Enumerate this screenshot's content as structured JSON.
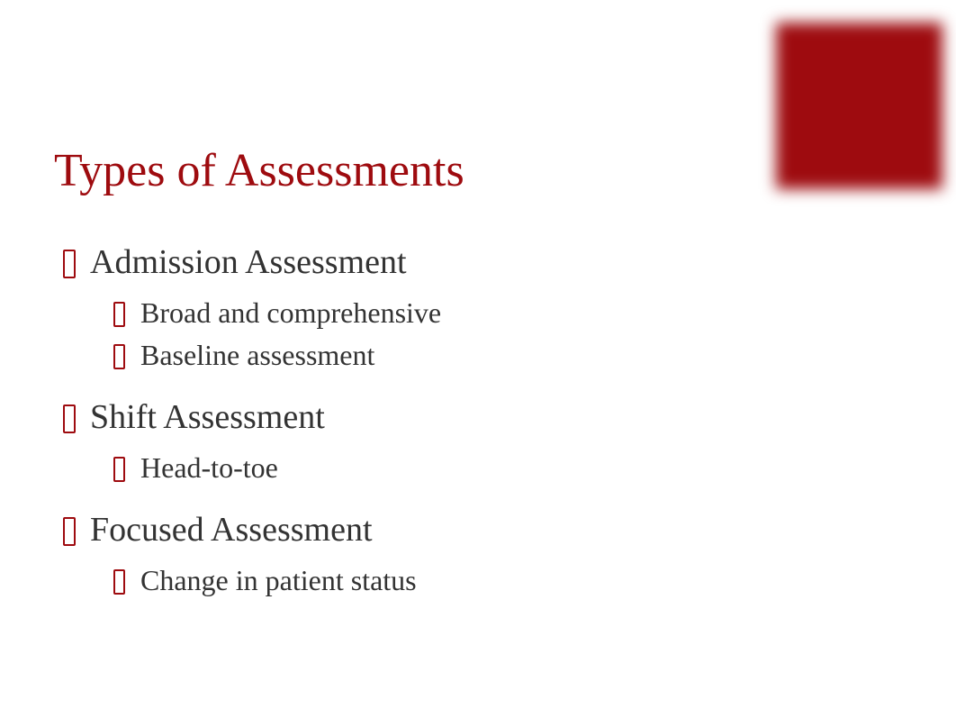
{
  "title": "Types of Assessments",
  "colors": {
    "accent": "#9e0b0f",
    "text": "#333333",
    "background": "#ffffff"
  },
  "typography": {
    "family": "Georgia, Times New Roman, serif",
    "title_fontsize": 52,
    "main_item_fontsize": 38,
    "sub_item_fontsize": 32
  },
  "decorative_square": {
    "color": "#9e0b0f",
    "width": 185,
    "height": 185,
    "blur": 8,
    "position": "top-right"
  },
  "items": [
    {
      "label": "Admission Assessment",
      "subitems": [
        "Broad and comprehensive",
        "Baseline assessment"
      ]
    },
    {
      "label": "Shift Assessment",
      "subitems": [
        "Head-to-toe"
      ]
    },
    {
      "label": "Focused Assessment",
      "subitems": [
        "Change in patient status"
      ]
    }
  ]
}
